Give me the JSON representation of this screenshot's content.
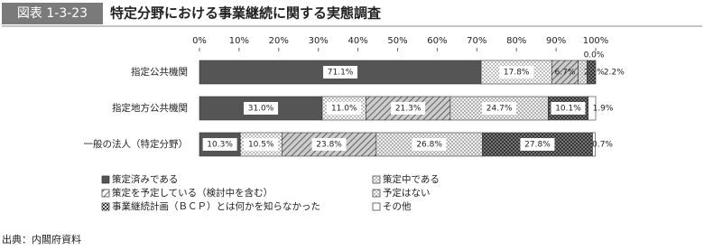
{
  "header": {
    "label": "図表 1-3-23",
    "title": "特定分野における事業継続に関する実態調査"
  },
  "chart_data": {
    "type": "stacked-barh",
    "categories": [
      "指定公共機関",
      "指定地方公共機関",
      "一般の法人（特定分野）"
    ],
    "xlim": [
      0,
      100
    ],
    "xticks": [
      {
        "value": 0,
        "label": "0%"
      },
      {
        "value": 10,
        "label": "10%"
      },
      {
        "value": 20,
        "label": "20%"
      },
      {
        "value": 30,
        "label": "30%"
      },
      {
        "value": 40,
        "label": "40%"
      },
      {
        "value": 50,
        "label": "50%"
      },
      {
        "value": 60,
        "label": "60%"
      },
      {
        "value": 70,
        "label": "70%"
      },
      {
        "value": 80,
        "label": "80%"
      },
      {
        "value": 90,
        "label": "90%"
      },
      {
        "value": 100,
        "label": "100%"
      }
    ],
    "series": [
      {
        "name": "策定済みである",
        "color": "#555555",
        "pattern": "solid",
        "values": [
          71.1,
          31.0,
          10.3
        ],
        "value_labels": [
          "71.1%",
          "31.0%",
          "10.3%"
        ]
      },
      {
        "name": "策定中である",
        "color": "#ffffff",
        "pattern": "dots",
        "values": [
          17.8,
          11.0,
          10.5
        ],
        "value_labels": [
          "17.8%",
          "11.0%",
          "10.5%"
        ]
      },
      {
        "name": "策定を予定している（検討中を含む）",
        "color": "#cccccc",
        "pattern": "diagonal",
        "values": [
          6.7,
          21.3,
          23.8
        ],
        "value_labels": [
          "6.7%",
          "21.3%",
          "23.8%"
        ]
      },
      {
        "name": "予定はない",
        "color": "#eeeeee",
        "pattern": "dots",
        "values": [
          2.2,
          24.7,
          26.8
        ],
        "value_labels": [
          "2.2%",
          "24.7%",
          "26.8%"
        ]
      },
      {
        "name": "事業継続計画（ＢＣＰ）とは何かを知らなかった",
        "color": "#777777",
        "pattern": "cross",
        "values": [
          2.2,
          10.1,
          27.8
        ],
        "value_labels": [
          "2.2%",
          "10.1%",
          "27.8%"
        ]
      },
      {
        "name": "その他",
        "color": "#ffffff",
        "pattern": "none",
        "values": [
          0.0,
          1.9,
          0.7
        ],
        "value_labels": [
          "0.0%",
          "1.9%",
          "0.7%"
        ]
      }
    ]
  },
  "source": "出典：内閣府資料"
}
